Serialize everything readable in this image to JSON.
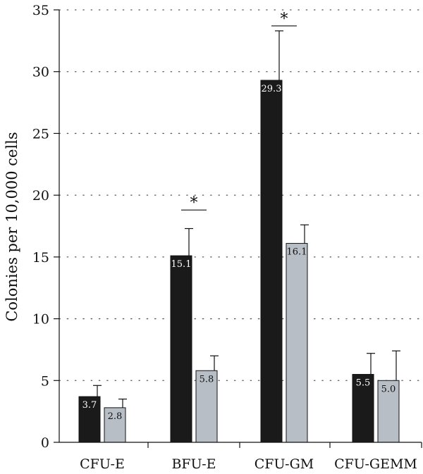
{
  "chart_data": {
    "type": "bar",
    "title": "",
    "xlabel": "",
    "ylabel": "Colonies per 10,000 cells",
    "ylim": [
      0,
      35
    ],
    "yticks": [
      0,
      5,
      10,
      15,
      20,
      25,
      30,
      35
    ],
    "grid": "horizontal dotted",
    "categories": [
      "CFU-E",
      "BFU-E",
      "CFU-GM",
      "CFU-GEMM"
    ],
    "series": [
      {
        "color": "#1a1a1a",
        "label_color": "#ffffff",
        "values": [
          3.7,
          15.1,
          29.3,
          5.5
        ],
        "value_labels": [
          "3.7",
          "15.1",
          "29.3",
          "5.5"
        ],
        "error_upper": [
          4.6,
          17.3,
          33.3,
          7.2
        ]
      },
      {
        "color": "#b8bec6",
        "label_color": "#111111",
        "values": [
          2.8,
          5.8,
          16.1,
          5.0
        ],
        "value_labels": [
          "2.8",
          "5.8",
          "16.1",
          "5.0"
        ],
        "error_upper": [
          3.5,
          7.0,
          17.6,
          7.4
        ]
      }
    ],
    "significance": [
      {
        "category": "BFU-E",
        "label": "*",
        "y": 18.8
      },
      {
        "category": "CFU-GM",
        "label": "*",
        "y": 33.7
      }
    ]
  }
}
